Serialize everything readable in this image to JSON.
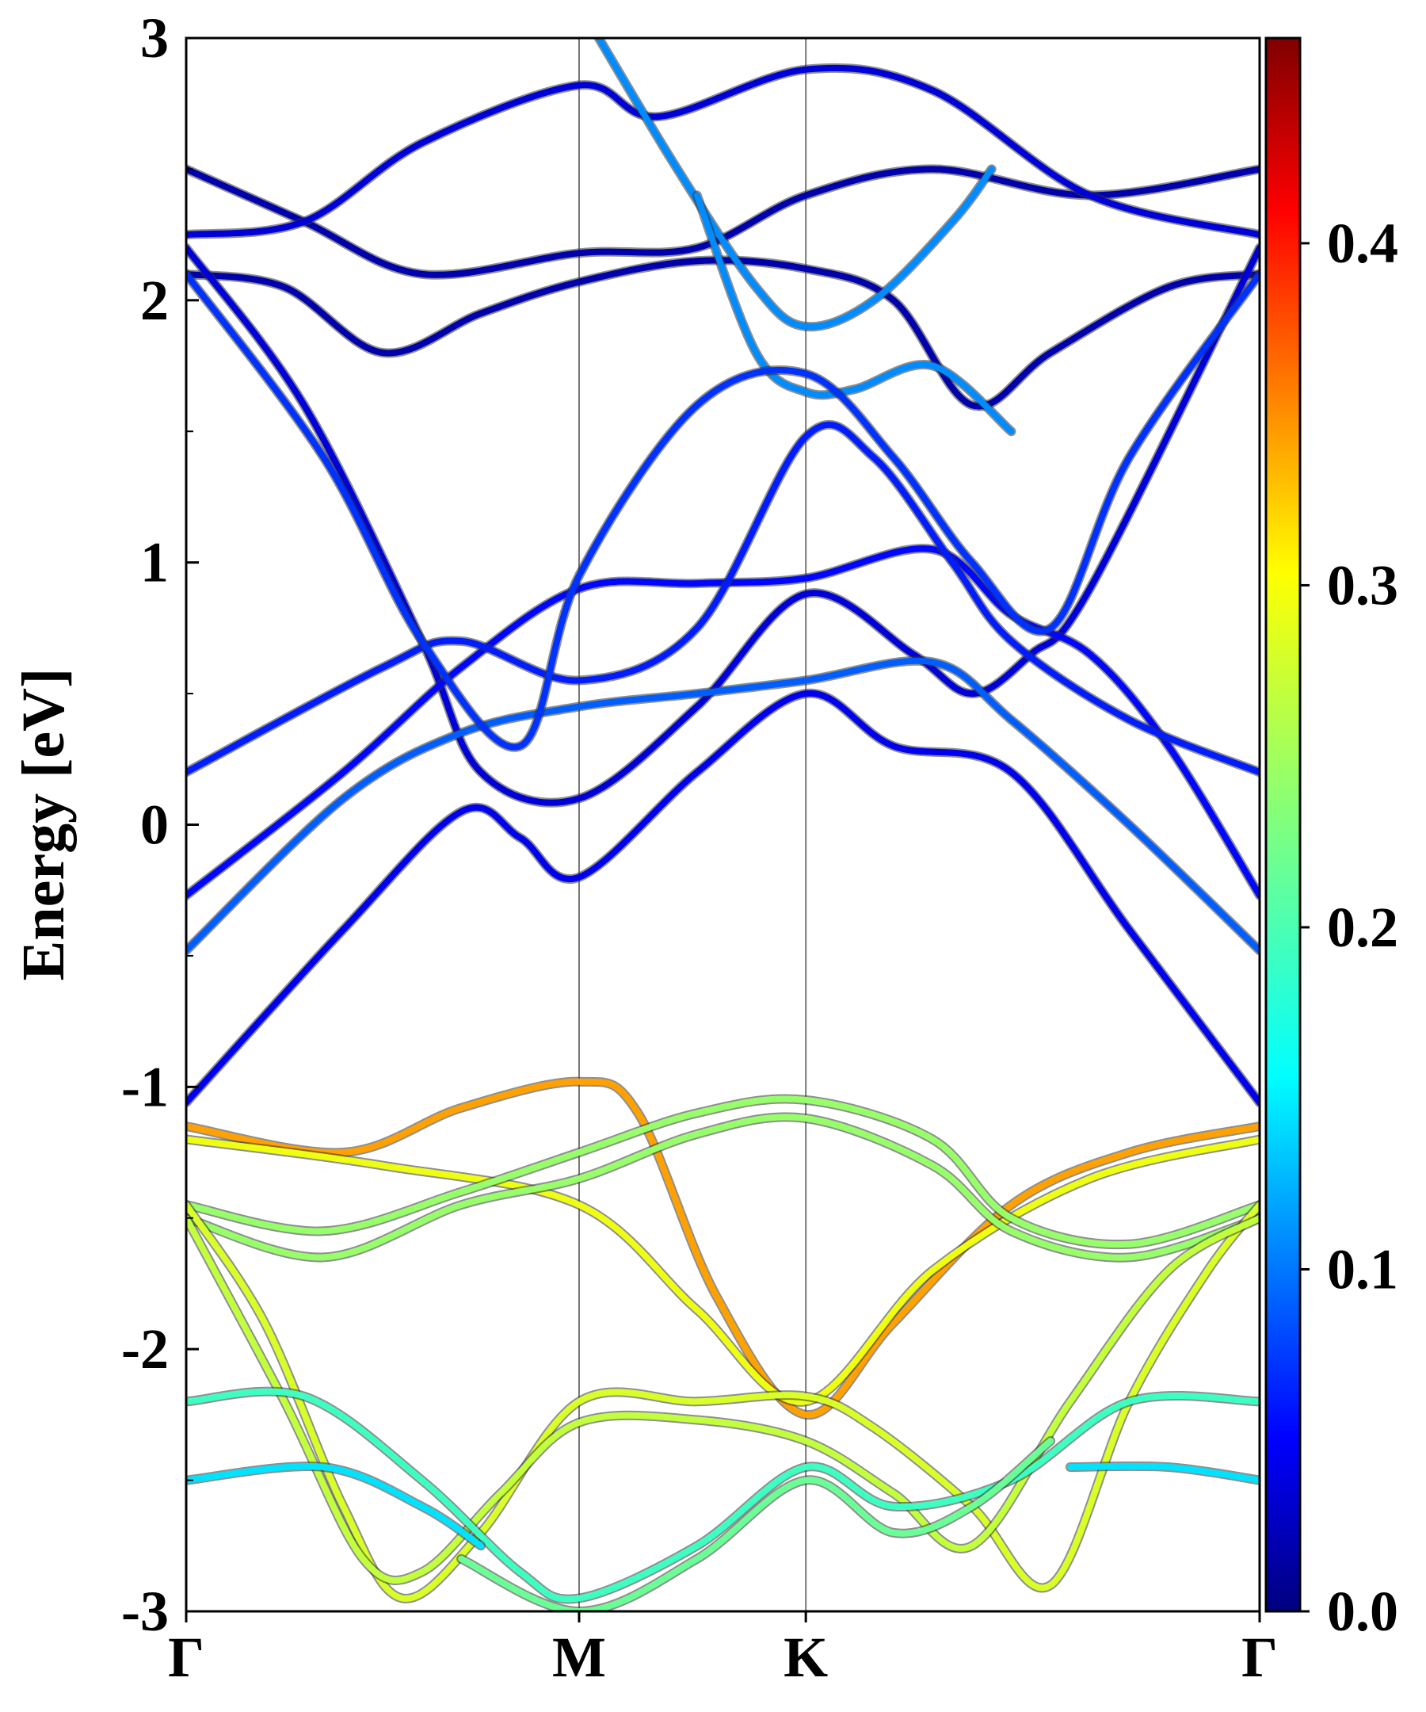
{
  "chart_data": {
    "type": "line",
    "title": "",
    "xlabel": "",
    "ylabel": "Energy [eV]",
    "ylim": [
      -3,
      3
    ],
    "yticks": [
      "3",
      "2",
      "1",
      "0",
      "-1",
      "-2",
      "-3"
    ],
    "x_kpoints": [
      {
        "label": "Γ",
        "pos": 0.0
      },
      {
        "label": "M",
        "pos": 1.0
      },
      {
        "label": "K",
        "pos": 1.577
      },
      {
        "label": "Γ",
        "pos": 2.732
      }
    ],
    "colorbar": {
      "range": [
        0.0,
        0.46
      ],
      "ticks": [
        "0.0",
        "0.1",
        "0.2",
        "0.3",
        "0.4"
      ],
      "colormap": "jet"
    },
    "bands": [
      {
        "weight": 0.02,
        "points": [
          [
            0,
            2.1
          ],
          [
            0.25,
            2.05
          ],
          [
            0.5,
            1.8
          ],
          [
            0.75,
            1.95
          ],
          [
            1.0,
            2.07
          ],
          [
            1.3,
            2.15
          ],
          [
            1.577,
            2.12
          ],
          [
            1.8,
            2.0
          ],
          [
            2.0,
            1.6
          ],
          [
            2.2,
            1.8
          ],
          [
            2.5,
            2.05
          ],
          [
            2.732,
            2.1
          ]
        ]
      },
      {
        "weight": 0.02,
        "points": [
          [
            0,
            2.5
          ],
          [
            0.3,
            2.3
          ],
          [
            0.6,
            2.1
          ],
          [
            1.0,
            2.18
          ],
          [
            1.3,
            2.2
          ],
          [
            1.577,
            2.4
          ],
          [
            1.9,
            2.5
          ],
          [
            2.3,
            2.4
          ],
          [
            2.732,
            2.5
          ]
        ]
      },
      {
        "weight": 0.04,
        "points": [
          [
            0,
            2.25
          ],
          [
            0.3,
            2.3
          ],
          [
            0.6,
            2.6
          ],
          [
            1.0,
            2.82
          ],
          [
            1.2,
            2.7
          ],
          [
            1.577,
            2.88
          ],
          [
            1.9,
            2.8
          ],
          [
            2.3,
            2.4
          ],
          [
            2.732,
            2.25
          ]
        ]
      },
      {
        "weight": 0.12,
        "points": [
          [
            1.05,
            3.0
          ],
          [
            1.25,
            2.5
          ],
          [
            1.45,
            2.05
          ],
          [
            1.577,
            1.9
          ],
          [
            1.75,
            2.0
          ],
          [
            1.95,
            2.3
          ],
          [
            2.05,
            2.5
          ]
        ]
      },
      {
        "weight": 0.12,
        "points": [
          [
            1.3,
            2.4
          ],
          [
            1.45,
            1.8
          ],
          [
            1.577,
            1.65
          ],
          [
            1.7,
            1.66
          ],
          [
            1.9,
            1.75
          ],
          [
            2.1,
            1.5
          ]
        ]
      },
      {
        "weight": 0.05,
        "points": [
          [
            0,
            -1.06
          ],
          [
            0.4,
            -0.4
          ],
          [
            0.7,
            0.05
          ],
          [
            0.85,
            -0.05
          ],
          [
            1.0,
            -0.2
          ],
          [
            1.3,
            0.2
          ],
          [
            1.577,
            0.5
          ],
          [
            1.8,
            0.3
          ],
          [
            2.1,
            0.2
          ],
          [
            2.4,
            -0.4
          ],
          [
            2.732,
            -1.06
          ]
        ]
      },
      {
        "weight": 0.04,
        "points": [
          [
            0,
            2.2
          ],
          [
            0.3,
            1.6
          ],
          [
            0.6,
            0.7
          ],
          [
            0.75,
            0.2
          ],
          [
            1.0,
            0.1
          ],
          [
            1.3,
            0.45
          ],
          [
            1.577,
            0.88
          ],
          [
            1.85,
            0.65
          ],
          [
            2.0,
            0.5
          ],
          [
            2.15,
            0.65
          ],
          [
            2.3,
            0.9
          ],
          [
            2.732,
            2.2
          ]
        ]
      },
      {
        "weight": 0.06,
        "points": [
          [
            0,
            -0.27
          ],
          [
            0.4,
            0.2
          ],
          [
            0.7,
            0.6
          ],
          [
            1.0,
            0.9
          ],
          [
            1.3,
            0.92
          ],
          [
            1.577,
            0.94
          ],
          [
            1.9,
            1.05
          ],
          [
            2.1,
            0.8
          ],
          [
            2.3,
            0.65
          ],
          [
            2.5,
            0.3
          ],
          [
            2.732,
            -0.27
          ]
        ]
      },
      {
        "weight": 0.07,
        "points": [
          [
            0,
            0.2
          ],
          [
            0.5,
            0.6
          ],
          [
            0.7,
            0.7
          ],
          [
            1.0,
            0.55
          ],
          [
            1.3,
            0.75
          ],
          [
            1.577,
            1.48
          ],
          [
            1.75,
            1.4
          ],
          [
            1.95,
            1.0
          ],
          [
            2.1,
            0.7
          ],
          [
            2.4,
            0.4
          ],
          [
            2.732,
            0.2
          ]
        ]
      },
      {
        "weight": 0.1,
        "points": [
          [
            0,
            -0.48
          ],
          [
            0.4,
            0.1
          ],
          [
            0.7,
            0.35
          ],
          [
            1.0,
            0.45
          ],
          [
            1.3,
            0.5
          ],
          [
            1.577,
            0.55
          ],
          [
            1.9,
            0.62
          ],
          [
            2.1,
            0.4
          ],
          [
            2.4,
            0.0
          ],
          [
            2.732,
            -0.48
          ]
        ]
      },
      {
        "weight": 0.08,
        "points": [
          [
            0,
            2.1
          ],
          [
            0.35,
            1.4
          ],
          [
            0.6,
            0.7
          ],
          [
            0.85,
            0.3
          ],
          [
            1.0,
            0.95
          ],
          [
            1.3,
            1.6
          ],
          [
            1.577,
            1.72
          ],
          [
            1.8,
            1.4
          ],
          [
            2.0,
            1.0
          ],
          [
            2.2,
            0.75
          ],
          [
            2.4,
            1.4
          ],
          [
            2.732,
            2.1
          ]
        ]
      },
      {
        "weight": 0.33,
        "points": [
          [
            0,
            -1.15
          ],
          [
            0.4,
            -1.25
          ],
          [
            0.7,
            -1.08
          ],
          [
            1.0,
            -0.98
          ],
          [
            1.15,
            -1.1
          ],
          [
            1.35,
            -1.8
          ],
          [
            1.577,
            -2.25
          ],
          [
            1.8,
            -1.9
          ],
          [
            2.1,
            -1.45
          ],
          [
            2.4,
            -1.25
          ],
          [
            2.732,
            -1.15
          ]
        ]
      },
      {
        "weight": 0.28,
        "points": [
          [
            0,
            -1.2
          ],
          [
            0.5,
            -1.3
          ],
          [
            1.0,
            -1.45
          ],
          [
            1.3,
            -1.85
          ],
          [
            1.577,
            -2.2
          ],
          [
            1.9,
            -1.7
          ],
          [
            2.3,
            -1.35
          ],
          [
            2.732,
            -1.2
          ]
        ]
      },
      {
        "weight": 0.24,
        "points": [
          [
            0,
            -1.45
          ],
          [
            0.35,
            -1.55
          ],
          [
            0.7,
            -1.4
          ],
          [
            1.0,
            -1.25
          ],
          [
            1.3,
            -1.1
          ],
          [
            1.577,
            -1.05
          ],
          [
            1.9,
            -1.2
          ],
          [
            2.1,
            -1.5
          ],
          [
            2.4,
            -1.6
          ],
          [
            2.732,
            -1.45
          ]
        ]
      },
      {
        "weight": 0.24,
        "points": [
          [
            0,
            -1.5
          ],
          [
            0.35,
            -1.65
          ],
          [
            0.7,
            -1.45
          ],
          [
            1.0,
            -1.35
          ],
          [
            1.3,
            -1.18
          ],
          [
            1.577,
            -1.12
          ],
          [
            1.9,
            -1.3
          ],
          [
            2.1,
            -1.55
          ],
          [
            2.4,
            -1.65
          ],
          [
            2.732,
            -1.5
          ]
        ]
      },
      {
        "weight": 0.27,
        "points": [
          [
            0,
            -1.45
          ],
          [
            0.2,
            -1.9
          ],
          [
            0.4,
            -2.6
          ],
          [
            0.55,
            -2.95
          ],
          [
            0.75,
            -2.7
          ],
          [
            1.0,
            -2.2
          ],
          [
            1.3,
            -2.2
          ],
          [
            1.577,
            -2.18
          ],
          [
            1.75,
            -2.3
          ],
          [
            2.0,
            -2.6
          ],
          [
            2.2,
            -2.9
          ],
          [
            2.4,
            -2.2
          ],
          [
            2.6,
            -1.7
          ],
          [
            2.732,
            -1.45
          ]
        ]
      },
      {
        "weight": 0.26,
        "points": [
          [
            0,
            -1.5
          ],
          [
            0.25,
            -2.2
          ],
          [
            0.45,
            -2.8
          ],
          [
            0.6,
            -2.85
          ],
          [
            0.8,
            -2.55
          ],
          [
            1.0,
            -2.28
          ],
          [
            1.3,
            -2.27
          ],
          [
            1.577,
            -2.35
          ],
          [
            1.8,
            -2.55
          ],
          [
            2.0,
            -2.75
          ],
          [
            2.25,
            -2.2
          ],
          [
            2.5,
            -1.7
          ],
          [
            2.732,
            -1.5
          ]
        ]
      },
      {
        "weight": 0.2,
        "points": [
          [
            0,
            -2.2
          ],
          [
            0.3,
            -2.18
          ],
          [
            0.6,
            -2.5
          ],
          [
            0.85,
            -2.85
          ],
          [
            1.0,
            -2.95
          ],
          [
            1.3,
            -2.75
          ],
          [
            1.577,
            -2.45
          ],
          [
            1.8,
            -2.6
          ],
          [
            2.1,
            -2.5
          ],
          [
            2.4,
            -2.2
          ],
          [
            2.732,
            -2.2
          ]
        ]
      },
      {
        "weight": 0.22,
        "points": [
          [
            0.7,
            -2.8
          ],
          [
            1.0,
            -3.0
          ],
          [
            1.3,
            -2.8
          ],
          [
            1.577,
            -2.5
          ],
          [
            1.8,
            -2.7
          ],
          [
            2.0,
            -2.6
          ],
          [
            2.2,
            -2.35
          ]
        ]
      },
      {
        "weight": 0.16,
        "points": [
          [
            0,
            -2.5
          ],
          [
            0.35,
            -2.45
          ],
          [
            0.6,
            -2.6
          ],
          [
            0.75,
            -2.75
          ]
        ]
      },
      {
        "weight": 0.16,
        "points": [
          [
            2.25,
            -2.45
          ],
          [
            2.5,
            -2.45
          ],
          [
            2.732,
            -2.5
          ]
        ]
      }
    ]
  }
}
